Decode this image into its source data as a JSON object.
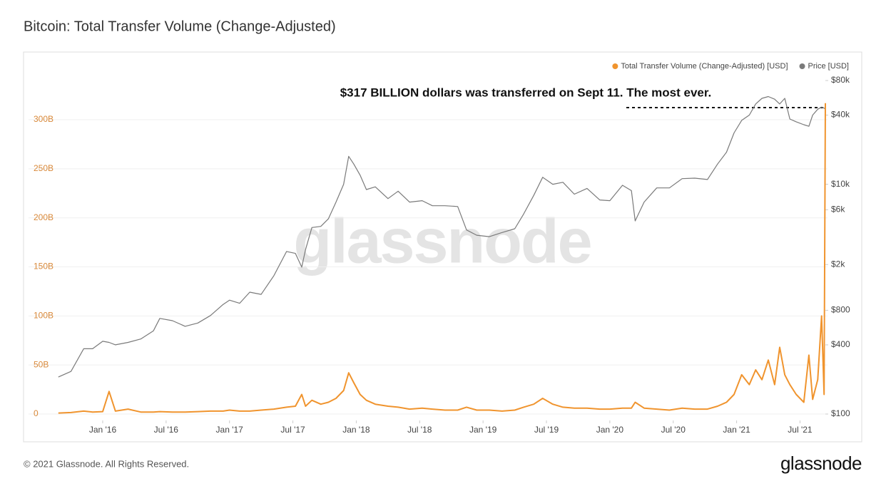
{
  "chart_data": {
    "type": "line",
    "title": "Bitcoin: Total Transfer Volume (Change-Adjusted)",
    "annotation": "$317 BILLION dollars was transferred on Sept 11. The most ever.",
    "watermark": "glassnode",
    "legend": "top-right",
    "grid": true,
    "x": [
      2015.65,
      2015.75,
      2015.85,
      2015.92,
      2016.0,
      2016.05,
      2016.1,
      2016.2,
      2016.3,
      2016.4,
      2016.45,
      2016.55,
      2016.65,
      2016.75,
      2016.85,
      2016.95,
      2017.0,
      2017.08,
      2017.16,
      2017.25,
      2017.35,
      2017.45,
      2017.52,
      2017.57,
      2017.6,
      2017.65,
      2017.72,
      2017.78,
      2017.84,
      2017.9,
      2017.94,
      2017.98,
      2018.03,
      2018.08,
      2018.15,
      2018.25,
      2018.33,
      2018.42,
      2018.52,
      2018.6,
      2018.7,
      2018.8,
      2018.87,
      2018.95,
      2019.05,
      2019.15,
      2019.25,
      2019.32,
      2019.4,
      2019.47,
      2019.55,
      2019.63,
      2019.72,
      2019.82,
      2019.92,
      2020.0,
      2020.1,
      2020.17,
      2020.2,
      2020.27,
      2020.37,
      2020.47,
      2020.57,
      2020.67,
      2020.77,
      2020.85,
      2020.92,
      2020.98,
      2021.04,
      2021.1,
      2021.15,
      2021.2,
      2021.25,
      2021.3,
      2021.34,
      2021.38,
      2021.42,
      2021.47,
      2021.53,
      2021.57,
      2021.6,
      2021.64,
      2021.67,
      2021.69,
      2021.7
    ],
    "xlim": [
      2015.64,
      2021.7
    ],
    "xticks": [
      {
        "value": 2016,
        "label": "Jan '16"
      },
      {
        "value": 2016.5,
        "label": "Jul '16"
      },
      {
        "value": 2017,
        "label": "Jan '17"
      },
      {
        "value": 2017.5,
        "label": "Jul '17"
      },
      {
        "value": 2018,
        "label": "Jan '18"
      },
      {
        "value": 2018.5,
        "label": "Jul '18"
      },
      {
        "value": 2019,
        "label": "Jan '19"
      },
      {
        "value": 2019.5,
        "label": "Jul '19"
      },
      {
        "value": 2020,
        "label": "Jan '20"
      },
      {
        "value": 2020.5,
        "label": "Jul '20"
      },
      {
        "value": 2021,
        "label": "Jan '21"
      },
      {
        "value": 2021.5,
        "label": "Jul '21"
      }
    ],
    "ylim": [
      0,
      340
    ],
    "yticks": [
      0,
      {
        "value": 50,
        "label": "50B"
      },
      {
        "value": 100,
        "label": "100B"
      },
      {
        "value": 150,
        "label": "150B"
      },
      {
        "value": 200,
        "label": "200B"
      },
      {
        "value": 250,
        "label": "250B"
      },
      {
        "value": 300,
        "label": "300B"
      }
    ],
    "y2lim": [
      100,
      80000
    ],
    "y2_log": true,
    "y2ticks": [
      {
        "value": 100,
        "label": "$100"
      },
      {
        "value": 400,
        "label": "$400"
      },
      {
        "value": 800,
        "label": "$800"
      },
      {
        "value": 2000,
        "label": "$2k"
      },
      {
        "value": 6000,
        "label": "$6k"
      },
      {
        "value": 10000,
        "label": "$10k"
      },
      {
        "value": 40000,
        "label": "$40k"
      },
      {
        "value": 80000,
        "label": "$80k"
      }
    ],
    "series": [
      {
        "name": "Total Transfer Volume (Change-Adjusted) [USD]",
        "color": "#f0942e",
        "values": [
          1,
          1.5,
          3,
          2,
          2.5,
          23,
          3,
          5,
          2,
          2,
          2.5,
          2,
          2,
          2.5,
          3,
          3,
          4,
          3,
          3,
          4,
          5,
          7,
          8,
          20,
          8,
          14,
          10,
          12,
          16,
          24,
          42,
          32,
          20,
          14,
          10,
          8,
          7,
          5,
          6,
          5,
          4,
          4,
          7,
          4,
          4,
          3,
          4,
          7,
          10,
          16,
          10,
          7,
          6,
          6,
          5,
          5,
          6,
          6,
          12,
          6,
          5,
          4,
          6,
          5,
          5,
          8,
          12,
          20,
          40,
          30,
          45,
          35,
          55,
          30,
          68,
          40,
          30,
          20,
          12,
          60,
          15,
          35,
          100,
          20,
          317
        ]
      },
      {
        "name": "Price [USD]",
        "color": "#7a7a7a",
        "axis": "y2",
        "values": [
          210,
          235,
          370,
          370,
          430,
          420,
          400,
          420,
          450,
          530,
          680,
          650,
          580,
          620,
          720,
          900,
          980,
          920,
          1150,
          1100,
          1600,
          2600,
          2500,
          1900,
          2700,
          4200,
          4300,
          5000,
          7000,
          10000,
          17500,
          15000,
          12000,
          9000,
          9500,
          7500,
          8700,
          7000,
          7200,
          6500,
          6500,
          6400,
          4000,
          3600,
          3500,
          3800,
          4100,
          5500,
          8000,
          11500,
          10000,
          10400,
          8200,
          9200,
          7300,
          7200,
          9800,
          8800,
          4800,
          7000,
          9300,
          9300,
          11200,
          11300,
          11000,
          15000,
          19000,
          28000,
          36000,
          40000,
          50000,
          56000,
          58000,
          55000,
          50000,
          56000,
          37000,
          35000,
          33000,
          32000,
          40000,
          45000,
          47000,
          46000,
          45000
        ]
      }
    ]
  },
  "footer": {
    "copyright": "© 2021 Glassnode. All Rights Reserved.",
    "logo": "glassnode"
  }
}
